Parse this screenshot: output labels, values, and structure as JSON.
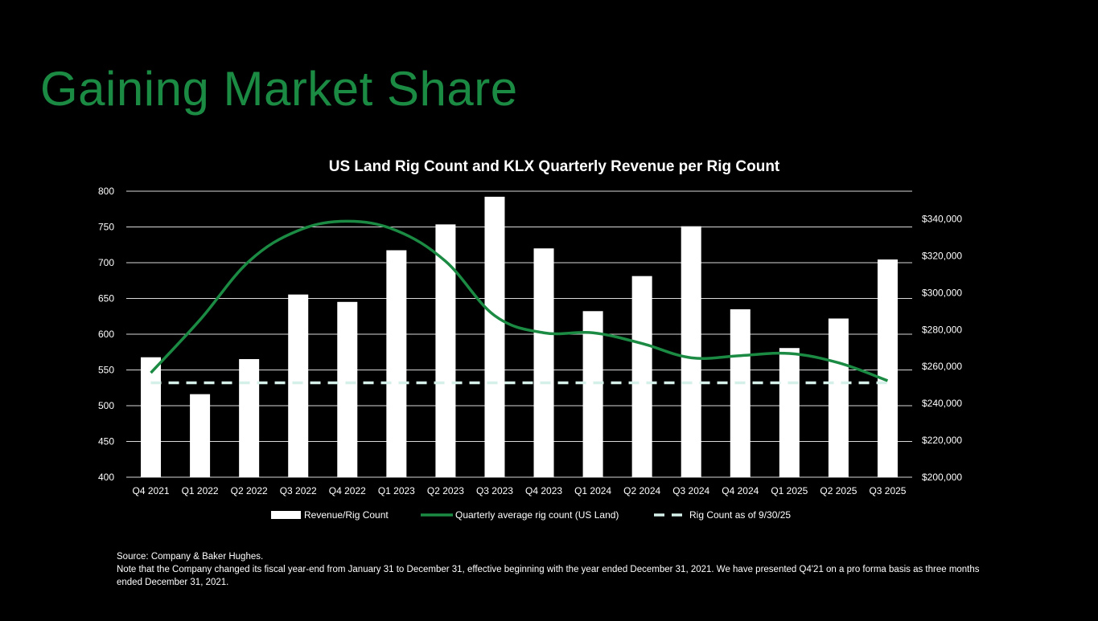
{
  "page": {
    "title": "Gaining Market Share"
  },
  "chart_data": {
    "type": "bar",
    "title": "US Land Rig Count and KLX Quarterly Revenue per Rig Count",
    "categories": [
      "Q4 2021",
      "Q1 2022",
      "Q2 2022",
      "Q3 2022",
      "Q4 2022",
      "Q1 2023",
      "Q2 2023",
      "Q3 2023",
      "Q4 2023",
      "Q1 2024",
      "Q2 2024",
      "Q3 2024",
      "Q4 2024",
      "Q1 2025",
      "Q2 2025",
      "Q3 2025"
    ],
    "left_axis": {
      "min": 400,
      "max": 800,
      "ticks": [
        "800",
        "750",
        "700",
        "650",
        "600",
        "550",
        "500",
        "450",
        "400"
      ],
      "tick_values": [
        800,
        750,
        700,
        650,
        600,
        550,
        500,
        450,
        400
      ]
    },
    "right_axis": {
      "min": 200000,
      "max": 355000,
      "ticks": [
        "$340,000",
        "$320,000",
        "$300,000",
        "$280,000",
        "$260,000",
        "$240,000",
        "$220,000",
        "$200,000"
      ],
      "tick_values": [
        340000,
        320000,
        300000,
        280000,
        260000,
        240000,
        220000,
        200000
      ]
    },
    "series": [
      {
        "name": "Revenue/Rig Count",
        "kind": "bar",
        "axis": "right",
        "color": "#ffffff",
        "values": [
          265000,
          245000,
          264000,
          299000,
          295000,
          323000,
          337000,
          352000,
          324000,
          290000,
          309000,
          336000,
          291000,
          270000,
          286000,
          318000
        ]
      },
      {
        "name": "Quarterly average rig count (US Land)",
        "kind": "line",
        "axis": "left",
        "color": "#1b8a43",
        "values": [
          546,
          620,
          702,
          745,
          758,
          745,
          702,
          626,
          602,
          602,
          587,
          567,
          570,
          573,
          560,
          535
        ]
      },
      {
        "name": "Rig Count as of 9/30/25",
        "kind": "dashed-line",
        "axis": "left",
        "color": "#d4f0e8",
        "value": 532
      }
    ],
    "legend": [
      "Revenue/Rig Count",
      "Quarterly average rig count (US Land)",
      "Rig Count as of 9/30/25"
    ],
    "legend_position": "bottom"
  },
  "footnote": {
    "source": "Source: Company & Baker Hughes.",
    "note": "Note that the Company changed its fiscal year-end from January 31 to December 31, effective beginning with the year ended December 31, 2021. We have presented Q4'21 on a pro forma basis as three months ended December 31, 2021."
  }
}
